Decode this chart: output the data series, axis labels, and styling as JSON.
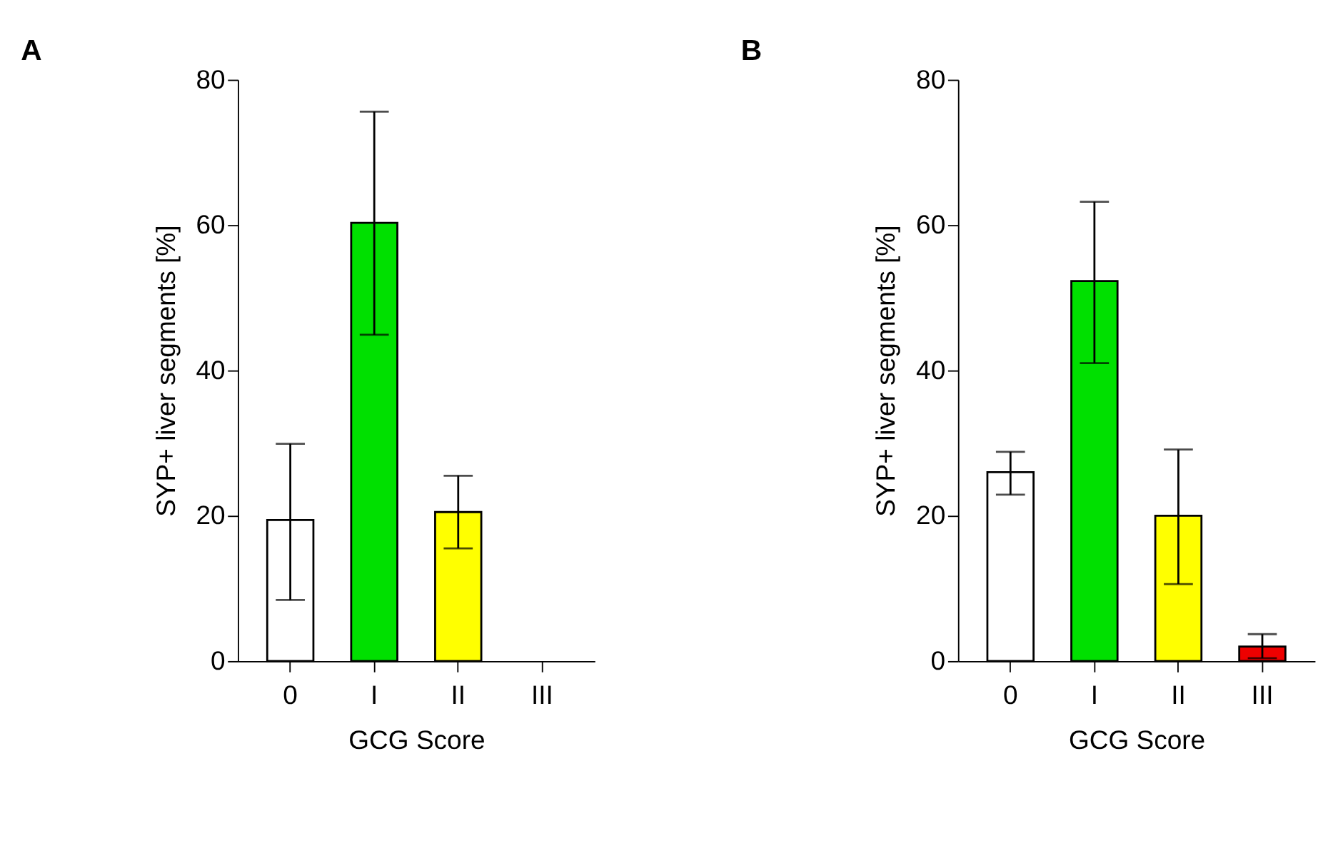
{
  "chart_data": [
    {
      "type": "bar",
      "title": "A",
      "xlabel": "GCG Score",
      "ylabel": "SYP+ liver segments [%]",
      "categories": [
        "0",
        "I",
        "II",
        "III"
      ],
      "values": [
        19.4,
        60.3,
        20.5,
        null
      ],
      "errors": [
        [
          8.4,
          29.9
        ],
        [
          44.9,
          75.6
        ],
        [
          15.5,
          25.5
        ],
        null
      ],
      "colors": [
        "#ffffff",
        "#00e000",
        "#ffff00",
        null
      ],
      "ylim": [
        0,
        80
      ],
      "yticks": [
        0,
        20,
        40,
        60,
        80
      ],
      "grid": false
    },
    {
      "type": "bar",
      "title": "B",
      "xlabel": "GCG Score",
      "ylabel": "SYP+ liver segments [%]",
      "categories": [
        "0",
        "I",
        "II",
        "III"
      ],
      "values": [
        26.0,
        52.3,
        20.0,
        2.0
      ],
      "errors": [
        [
          22.9,
          28.8
        ],
        [
          41.0,
          63.2
        ],
        [
          10.6,
          29.1
        ],
        [
          0.4,
          3.7
        ]
      ],
      "colors": [
        "#ffffff",
        "#00e000",
        "#ffff00",
        "#ee0000"
      ],
      "ylim": [
        0,
        80
      ],
      "yticks": [
        0,
        20,
        40,
        60,
        80
      ],
      "grid": false
    }
  ]
}
